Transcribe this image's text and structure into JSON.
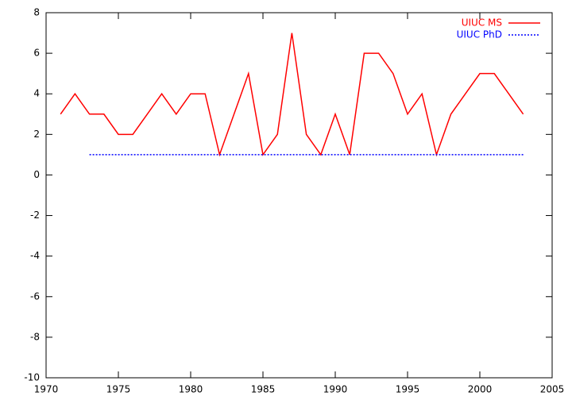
{
  "chart_data": {
    "type": "line",
    "xlim": [
      1970,
      2005
    ],
    "xticks": [
      1970,
      1975,
      1980,
      1985,
      1990,
      1995,
      2000,
      2005
    ],
    "ylim": [
      -10,
      8
    ],
    "yticks": [
      -10,
      -8,
      -6,
      -4,
      -2,
      0,
      2,
      4,
      6,
      8
    ],
    "legend": "top-right",
    "series": [
      {
        "name": "UIUC MS",
        "color": "#ff0000",
        "dash": "solid",
        "x": [
          1971,
          1972,
          1973,
          1974,
          1975,
          1976,
          1977,
          1978,
          1979,
          1980,
          1981,
          1982,
          1983,
          1984,
          1985,
          1986,
          1987,
          1988,
          1989,
          1990,
          1991,
          1992,
          1993,
          1994,
          1995,
          1996,
          1997,
          1998,
          1999,
          2000,
          2001,
          2002,
          2003
        ],
        "values": [
          3,
          4,
          3,
          3,
          2,
          2,
          3,
          4,
          3,
          4,
          4,
          1,
          3,
          5,
          1,
          2,
          7,
          2,
          1,
          3,
          1,
          6,
          6,
          5,
          3,
          4,
          1,
          3,
          4,
          5,
          5,
          4,
          3
        ]
      },
      {
        "name": "UIUC PhD",
        "color": "#0000ff",
        "dash": "dotted",
        "x": [
          1973,
          2003
        ],
        "values": [
          1,
          1
        ]
      }
    ]
  }
}
